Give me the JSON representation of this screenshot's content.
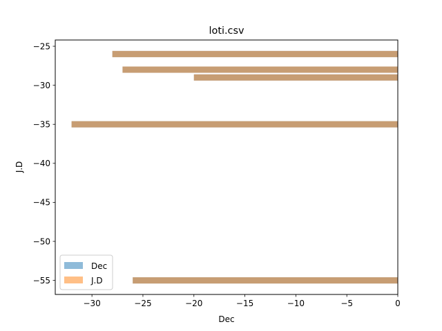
{
  "chart_data": {
    "type": "bar",
    "orientation": "horizontal",
    "title": "loti.csv",
    "xlabel": "Dec",
    "ylabel": "J.D",
    "xlim": [
      -33.6,
      0
    ],
    "ylim": [
      -56.8,
      -24.2
    ],
    "xticks": [
      -30,
      -25,
      -20,
      -15,
      -10,
      -5,
      0
    ],
    "yticks": [
      -25,
      -30,
      -35,
      -40,
      -45,
      -50,
      -55
    ],
    "tick_labels_x": [
      "−30",
      "−25",
      "−20",
      "−15",
      "−10",
      "−5",
      "0"
    ],
    "tick_labels_y": [
      "−25",
      "−30",
      "−35",
      "−40",
      "−45",
      "−50",
      "−55"
    ],
    "grid": false,
    "legend_position": "lower-left",
    "series": [
      {
        "name": "Dec",
        "color": "#1f77b4",
        "opacity": 0.5,
        "bars": [
          {
            "y": -26,
            "value": -28
          },
          {
            "y": -28,
            "value": -27
          },
          {
            "y": -29,
            "value": -20
          },
          {
            "y": -35,
            "value": -32
          },
          {
            "y": -55,
            "value": -26
          }
        ]
      },
      {
        "name": "J.D",
        "color": "#ff7f0e",
        "opacity": 0.5,
        "bars": [
          {
            "y": -26,
            "value": -28
          },
          {
            "y": -28,
            "value": -27
          },
          {
            "y": -29,
            "value": -20
          },
          {
            "y": -35,
            "value": -32
          },
          {
            "y": -55,
            "value": -26
          }
        ]
      }
    ],
    "bar_thickness": 0.8
  }
}
